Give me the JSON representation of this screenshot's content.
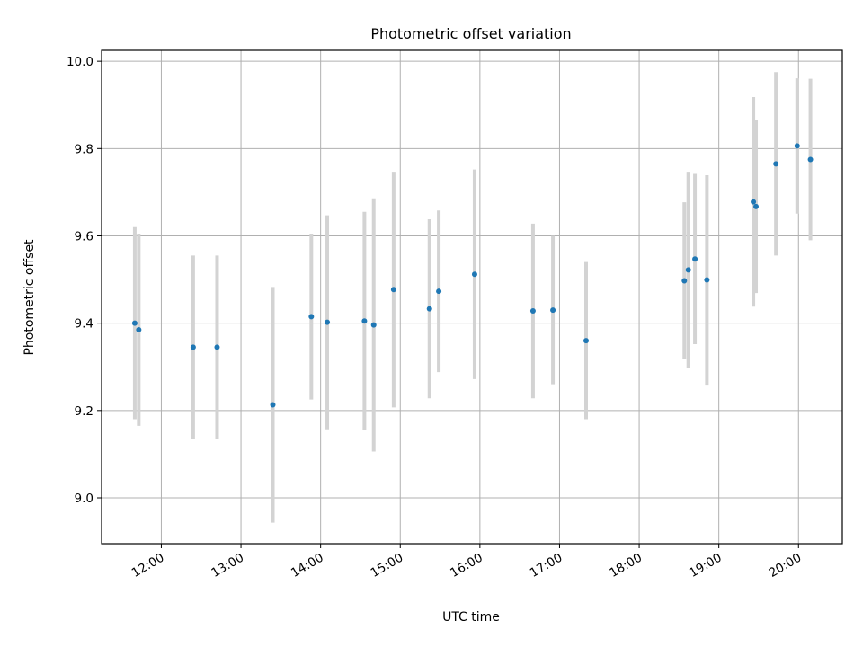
{
  "chart_data": {
    "type": "scatter",
    "title": "Photometric offset variation",
    "xlabel": "UTC time",
    "ylabel": "Photometric offset",
    "x_unit": "UTC time (HH:MM)",
    "xlim": [
      "11:15",
      "20:33"
    ],
    "ylim": [
      8.895,
      10.025
    ],
    "x_ticks": [
      "12:00",
      "13:00",
      "14:00",
      "15:00",
      "16:00",
      "17:00",
      "18:00",
      "19:00",
      "20:00"
    ],
    "y_ticks": [
      9.0,
      9.2,
      9.4,
      9.6,
      9.8,
      10.0
    ],
    "y_tick_labels": [
      "9.0",
      "9.2",
      "9.4",
      "9.6",
      "9.8",
      "10.0"
    ],
    "grid": true,
    "legend": "none",
    "marker_color": "#1f77b4",
    "errorbar_color": "#d3d3d3",
    "points": [
      {
        "x": "11:40",
        "y": 9.4,
        "err": 0.22
      },
      {
        "x": "11:43",
        "y": 9.385,
        "err": 0.22
      },
      {
        "x": "12:24",
        "y": 9.345,
        "err": 0.21
      },
      {
        "x": "12:42",
        "y": 9.345,
        "err": 0.21
      },
      {
        "x": "13:24",
        "y": 9.213,
        "err": 0.27
      },
      {
        "x": "13:53",
        "y": 9.415,
        "err": 0.19
      },
      {
        "x": "14:05",
        "y": 9.402,
        "err": 0.245
      },
      {
        "x": "14:33",
        "y": 9.405,
        "err": 0.25
      },
      {
        "x": "14:40",
        "y": 9.396,
        "err": 0.29
      },
      {
        "x": "14:55",
        "y": 9.477,
        "err": 0.27
      },
      {
        "x": "15:22",
        "y": 9.433,
        "err": 0.205
      },
      {
        "x": "15:29",
        "y": 9.473,
        "err": 0.185
      },
      {
        "x": "15:56",
        "y": 9.512,
        "err": 0.24
      },
      {
        "x": "16:40",
        "y": 9.428,
        "err": 0.2
      },
      {
        "x": "16:55",
        "y": 9.43,
        "err": 0.17
      },
      {
        "x": "17:20",
        "y": 9.36,
        "err": 0.18
      },
      {
        "x": "18:34",
        "y": 9.497,
        "err": 0.18
      },
      {
        "x": "18:37",
        "y": 9.522,
        "err": 0.225
      },
      {
        "x": "18:42",
        "y": 9.547,
        "err": 0.195
      },
      {
        "x": "18:51",
        "y": 9.499,
        "err": 0.24
      },
      {
        "x": "19:26",
        "y": 9.678,
        "err": 0.24
      },
      {
        "x": "19:28",
        "y": 9.667,
        "err": 0.198
      },
      {
        "x": "19:43",
        "y": 9.765,
        "err": 0.21
      },
      {
        "x": "19:59",
        "y": 9.806,
        "err": 0.155
      },
      {
        "x": "20:09",
        "y": 9.775,
        "err": 0.185
      }
    ]
  }
}
